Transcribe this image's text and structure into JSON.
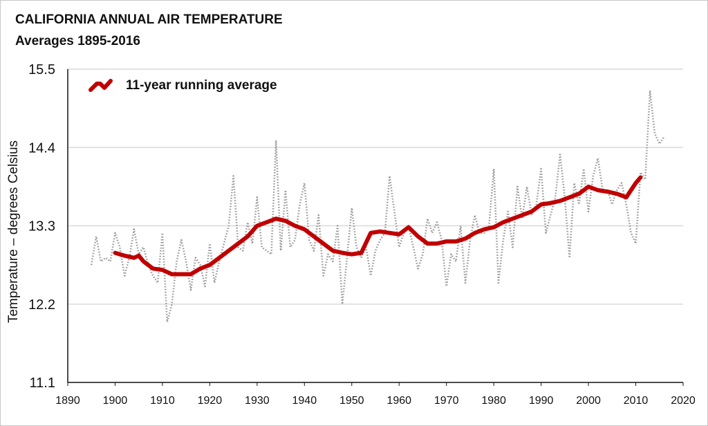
{
  "chart_data": {
    "type": "line",
    "title": "CALIFORNIA ANNUAL AIR TEMPERATURE",
    "subtitle": "Averages 1895-2016",
    "xlabel": "",
    "ylabel": "Temperature – degrees Celsius",
    "xlim": [
      1890,
      2020
    ],
    "ylim": [
      11.1,
      15.5
    ],
    "xticks": [
      "1890",
      "1900",
      "1910",
      "1920",
      "1930",
      "1940",
      "1950",
      "1960",
      "1970",
      "1980",
      "1990",
      "2000",
      "2010",
      "2020"
    ],
    "yticks": [
      "11.1",
      "12.2",
      "13.3",
      "14.4",
      "15.5"
    ],
    "grid": "horizontal",
    "legend": {
      "position": "top-left",
      "label": "11-year running average"
    },
    "colors": {
      "annual": "#9a9a9a",
      "running": "#c00000",
      "grid": "#d9d9d9"
    },
    "series": [
      {
        "style": "dotted",
        "x": [
          1895,
          1896,
          1897,
          1898,
          1899,
          1900,
          1901,
          1902,
          1903,
          1904,
          1905,
          1906,
          1907,
          1908,
          1909,
          1910,
          1911,
          1912,
          1913,
          1914,
          1915,
          1916,
          1917,
          1918,
          1919,
          1920,
          1921,
          1922,
          1923,
          1924,
          1925,
          1926,
          1927,
          1928,
          1929,
          1930,
          1931,
          1932,
          1933,
          1934,
          1935,
          1936,
          1937,
          1938,
          1939,
          1940,
          1941,
          1942,
          1943,
          1944,
          1945,
          1946,
          1947,
          1948,
          1949,
          1950,
          1951,
          1952,
          1953,
          1954,
          1955,
          1956,
          1957,
          1958,
          1959,
          1960,
          1961,
          1962,
          1963,
          1964,
          1965,
          1966,
          1967,
          1968,
          1969,
          1970,
          1971,
          1972,
          1973,
          1974,
          1975,
          1976,
          1977,
          1978,
          1979,
          1980,
          1981,
          1982,
          1983,
          1984,
          1985,
          1986,
          1987,
          1988,
          1989,
          1990,
          1991,
          1992,
          1993,
          1994,
          1995,
          1996,
          1997,
          1998,
          1999,
          2000,
          2001,
          2002,
          2003,
          2004,
          2005,
          2006,
          2007,
          2008,
          2009,
          2010,
          2011,
          2012,
          2013,
          2014,
          2015,
          2016
        ],
        "values": [
          12.75,
          13.15,
          12.8,
          12.85,
          12.8,
          13.2,
          13.0,
          12.6,
          12.85,
          13.25,
          12.9,
          13.0,
          12.75,
          12.6,
          12.5,
          13.2,
          11.95,
          12.2,
          12.8,
          13.1,
          12.8,
          12.4,
          12.85,
          12.75,
          12.45,
          13.05,
          12.5,
          12.8,
          13.05,
          13.3,
          14.0,
          13.0,
          12.95,
          13.35,
          13.05,
          13.7,
          13.0,
          12.95,
          12.9,
          14.5,
          12.95,
          13.8,
          13.0,
          13.1,
          13.6,
          13.9,
          13.1,
          12.95,
          13.45,
          12.6,
          12.9,
          12.8,
          13.3,
          12.2,
          12.85,
          13.55,
          13.0,
          12.85,
          13.0,
          12.6,
          12.95,
          13.1,
          13.2,
          14.0,
          13.5,
          13.0,
          13.2,
          13.3,
          13.0,
          12.7,
          12.9,
          13.4,
          13.2,
          13.35,
          13.1,
          12.45,
          12.9,
          12.8,
          13.3,
          12.5,
          13.1,
          13.45,
          13.2,
          13.2,
          13.3,
          14.1,
          12.5,
          13.1,
          13.5,
          13.0,
          13.85,
          13.4,
          13.85,
          13.45,
          13.6,
          14.1,
          13.2,
          13.45,
          13.7,
          14.3,
          13.7,
          12.85,
          13.9,
          13.6,
          14.1,
          13.5,
          14.0,
          14.25,
          13.8,
          13.8,
          13.6,
          13.8,
          13.9,
          13.6,
          13.2,
          13.05,
          14.05,
          13.95,
          15.2,
          14.6,
          14.45,
          14.55
        ]
      },
      {
        "name": "11-year running average",
        "style": "solid",
        "x": [
          1900,
          1902,
          1904,
          1905,
          1906,
          1908,
          1910,
          1912,
          1914,
          1916,
          1918,
          1920,
          1922,
          1924,
          1926,
          1928,
          1930,
          1932,
          1934,
          1936,
          1938,
          1940,
          1942,
          1944,
          1946,
          1948,
          1950,
          1952,
          1954,
          1956,
          1958,
          1960,
          1962,
          1964,
          1966,
          1968,
          1970,
          1972,
          1974,
          1976,
          1978,
          1980,
          1982,
          1984,
          1986,
          1988,
          1990,
          1992,
          1994,
          1996,
          1998,
          2000,
          2002,
          2004,
          2006,
          2008,
          2010,
          2011
        ],
        "values": [
          12.92,
          12.88,
          12.85,
          12.88,
          12.8,
          12.7,
          12.68,
          12.62,
          12.62,
          12.62,
          12.7,
          12.75,
          12.85,
          12.95,
          13.05,
          13.15,
          13.3,
          13.35,
          13.4,
          13.37,
          13.3,
          13.25,
          13.15,
          13.05,
          12.95,
          12.92,
          12.9,
          12.92,
          13.2,
          13.22,
          13.2,
          13.18,
          13.28,
          13.15,
          13.05,
          13.05,
          13.08,
          13.08,
          13.12,
          13.2,
          13.25,
          13.28,
          13.35,
          13.4,
          13.45,
          13.5,
          13.6,
          13.62,
          13.65,
          13.7,
          13.75,
          13.85,
          13.8,
          13.78,
          13.75,
          13.7,
          13.9,
          13.98
        ]
      }
    ]
  }
}
